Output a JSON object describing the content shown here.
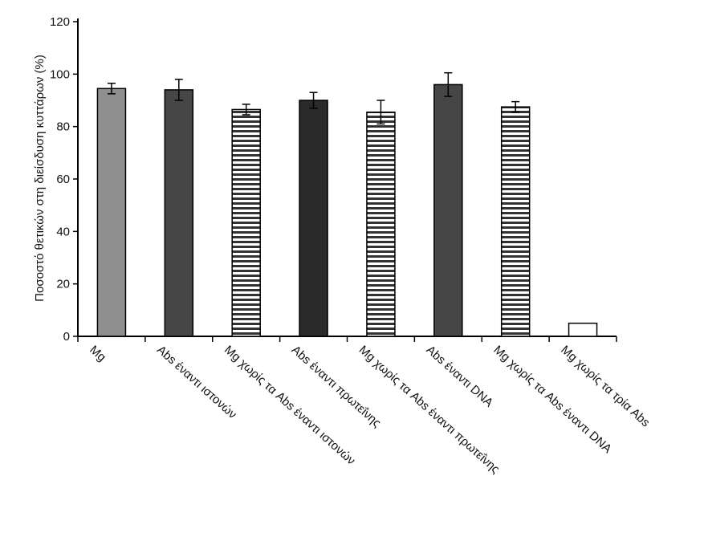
{
  "chart_data": {
    "type": "bar",
    "title": "",
    "xlabel": "",
    "ylabel": "Ποσοστό θετικών στη διείσδυση κυττάρων (%)",
    "ylim": [
      0,
      120
    ],
    "yticks": [
      0,
      20,
      40,
      60,
      80,
      100,
      120
    ],
    "grid": false,
    "legend": "none",
    "categories": [
      "Mg",
      "Abs έναντι ιστονών",
      "Mg χωρίς τα Abs έναντι ιστονών",
      "Abs έναντι πρωτεΐνης",
      "Mg χωρίς τα Abs έναντι πρωτεΐνης",
      "Abs έναντι DNA",
      "Mg χωρίς τα Abs έναντι DNA",
      "Mg χωρίς τα τρία Abs"
    ],
    "values": [
      94.5,
      94,
      86.5,
      90,
      85.5,
      96,
      87.5,
      5
    ],
    "errors": [
      2,
      4,
      2,
      3,
      4.5,
      4.5,
      2,
      0
    ],
    "bar_styles": [
      "light",
      "dark",
      "striped",
      "darkest",
      "striped",
      "dark",
      "striped",
      "white"
    ],
    "colors": {
      "light": "#8f8f8f",
      "dark": "#464646",
      "darkest": "#2a2a2a",
      "stripe": "#333333",
      "axis": "#000000"
    }
  }
}
